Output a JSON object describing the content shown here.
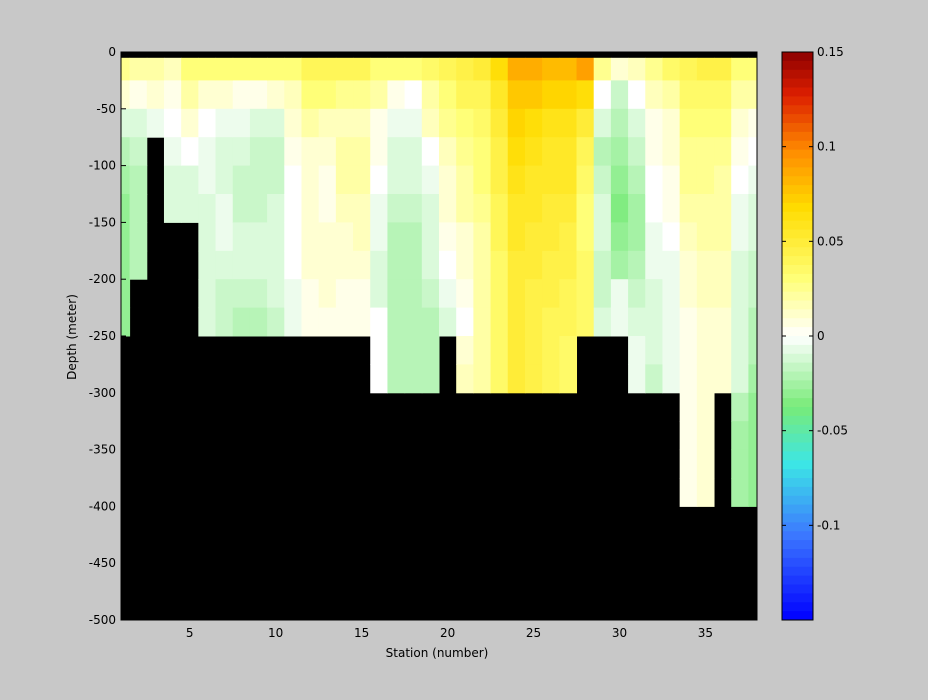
{
  "chart_data": {
    "type": "heatmap",
    "xlabel": "Station (number)",
    "ylabel": "Depth (meter)",
    "xlim": [
      1,
      38
    ],
    "ylim": [
      -500,
      0
    ],
    "x_ticks": [
      5,
      10,
      15,
      20,
      25,
      30,
      35
    ],
    "y_ticks": [
      0,
      -50,
      -100,
      -150,
      -200,
      -250,
      -300,
      -350,
      -400,
      -450,
      -500
    ],
    "colorbar": {
      "range": [
        -0.15,
        0.15
      ],
      "ticks": [
        0.15,
        0.1,
        0.05,
        0,
        -0.05,
        -0.1
      ],
      "tick_labels": [
        "0.15",
        "0.1",
        "0.05",
        "0",
        "-0.05",
        "-0.1"
      ],
      "colormap": "jet-like diverging with white at zero"
    },
    "stations": [
      1,
      2,
      3,
      4,
      5,
      6,
      7,
      8,
      9,
      10,
      11,
      12,
      13,
      14,
      15,
      16,
      17,
      18,
      19,
      20,
      21,
      22,
      23,
      24,
      25,
      26,
      27,
      28,
      29,
      30,
      31,
      32,
      33,
      34,
      35,
      36,
      37,
      38
    ],
    "bottom_depth": [
      -250,
      -200,
      -75,
      -150,
      -150,
      -250,
      -250,
      -250,
      -250,
      -250,
      -250,
      -250,
      -250,
      -250,
      -250,
      -300,
      -300,
      -300,
      -300,
      -250,
      -300,
      -300,
      -300,
      -300,
      -300,
      -300,
      -300,
      -250,
      -250,
      -250,
      -300,
      -300,
      -300,
      -400,
      -400,
      -300,
      -400,
      -400
    ],
    "depth_rows_top": [
      -5,
      -25,
      -50,
      -75,
      -100,
      -125,
      -150,
      -175,
      -200,
      -225,
      -250,
      -275,
      -300,
      -325,
      -350,
      -375
    ],
    "depth_rows_bottom": [
      -25,
      -50,
      -75,
      -100,
      -125,
      -150,
      -175,
      -200,
      -225,
      -250,
      -275,
      -300,
      -325,
      -350,
      -375,
      -400
    ],
    "station_profiles": [
      [
        0.025,
        0.01,
        -0.01,
        -0.02,
        -0.025,
        -0.03,
        -0.03,
        -0.03,
        -0.03,
        -0.03
      ],
      [
        0.02,
        0.005,
        -0.01,
        -0.015,
        -0.02,
        -0.02,
        -0.02,
        -0.02
      ],
      [
        0.02,
        0.01,
        -0.005
      ],
      [
        0.015,
        0.005,
        0.0,
        -0.005,
        -0.01,
        -0.01
      ],
      [
        0.03,
        0.02,
        0.01,
        0.0,
        -0.01,
        -0.01
      ],
      [
        0.03,
        0.01,
        0.0,
        -0.005,
        -0.005,
        -0.01,
        -0.01,
        -0.01,
        -0.01,
        -0.01
      ],
      [
        0.03,
        0.01,
        -0.005,
        -0.01,
        -0.01,
        -0.005,
        -0.005,
        -0.01,
        -0.015,
        -0.015
      ],
      [
        0.03,
        0.005,
        -0.005,
        -0.01,
        -0.015,
        -0.015,
        -0.01,
        -0.01,
        -0.015,
        -0.02
      ],
      [
        0.03,
        0.005,
        -0.01,
        -0.015,
        -0.015,
        -0.015,
        -0.01,
        -0.01,
        -0.015,
        -0.02
      ],
      [
        0.03,
        0.01,
        -0.01,
        -0.015,
        -0.015,
        -0.01,
        -0.01,
        -0.01,
        -0.01,
        -0.015
      ],
      [
        0.03,
        0.015,
        0.01,
        0.005,
        0.0,
        0.0,
        0.0,
        0.0,
        -0.005,
        -0.005
      ],
      [
        0.04,
        0.03,
        0.02,
        0.01,
        0.01,
        0.01,
        0.01,
        0.01,
        0.005,
        0.005
      ],
      [
        0.04,
        0.03,
        0.015,
        0.01,
        0.005,
        0.005,
        0.01,
        0.01,
        0.01,
        0.005
      ],
      [
        0.04,
        0.025,
        0.015,
        0.02,
        0.02,
        0.015,
        0.01,
        0.01,
        0.005,
        0.005
      ],
      [
        0.04,
        0.025,
        0.015,
        0.02,
        0.02,
        0.015,
        0.015,
        0.01,
        0.005,
        0.005
      ],
      [
        0.03,
        0.02,
        0.005,
        0.005,
        0.0,
        -0.005,
        -0.005,
        -0.01,
        -0.01,
        0.0,
        0.0,
        0.0
      ],
      [
        0.03,
        0.005,
        -0.005,
        -0.01,
        -0.01,
        -0.015,
        -0.02,
        -0.02,
        -0.02,
        -0.02,
        -0.02,
        -0.02
      ],
      [
        0.03,
        0.0,
        -0.005,
        -0.01,
        -0.01,
        -0.015,
        -0.02,
        -0.02,
        -0.02,
        -0.02,
        -0.02,
        -0.02
      ],
      [
        0.035,
        0.02,
        0.015,
        0.0,
        -0.005,
        -0.01,
        -0.01,
        -0.01,
        -0.015,
        -0.02,
        -0.02,
        -0.02
      ],
      [
        0.04,
        0.03,
        0.025,
        0.015,
        0.01,
        0.01,
        0.005,
        0.0,
        -0.005,
        -0.01
      ],
      [
        0.045,
        0.04,
        0.03,
        0.025,
        0.02,
        0.02,
        0.01,
        0.01,
        0.005,
        0.0,
        0.01,
        0.015
      ],
      [
        0.05,
        0.04,
        0.035,
        0.03,
        0.03,
        0.025,
        0.02,
        0.02,
        0.02,
        0.02,
        0.02,
        0.02
      ],
      [
        0.065,
        0.055,
        0.05,
        0.045,
        0.045,
        0.04,
        0.04,
        0.035,
        0.035,
        0.035,
        0.035,
        0.035
      ],
      [
        0.085,
        0.075,
        0.07,
        0.065,
        0.06,
        0.055,
        0.055,
        0.05,
        0.05,
        0.05,
        0.05,
        0.05
      ],
      [
        0.085,
        0.075,
        0.065,
        0.06,
        0.055,
        0.055,
        0.05,
        0.05,
        0.045,
        0.045,
        0.045,
        0.045
      ],
      [
        0.08,
        0.07,
        0.06,
        0.055,
        0.055,
        0.05,
        0.05,
        0.045,
        0.045,
        0.04,
        0.04,
        0.04
      ],
      [
        0.08,
        0.07,
        0.06,
        0.055,
        0.055,
        0.05,
        0.045,
        0.045,
        0.04,
        0.04,
        0.035,
        0.035
      ],
      [
        0.09,
        0.065,
        0.05,
        0.04,
        0.035,
        0.03,
        0.03,
        0.035,
        0.035,
        0.035
      ],
      [
        0.025,
        0.0,
        -0.01,
        -0.02,
        -0.015,
        -0.01,
        -0.01,
        -0.015,
        -0.015,
        -0.01
      ],
      [
        0.01,
        -0.015,
        -0.02,
        -0.025,
        -0.03,
        -0.035,
        -0.03,
        -0.025,
        -0.005,
        -0.005
      ],
      [
        0.015,
        0.0,
        -0.01,
        -0.015,
        -0.02,
        -0.025,
        -0.025,
        -0.02,
        -0.015,
        -0.01,
        -0.005,
        -0.005
      ],
      [
        0.025,
        0.015,
        0.005,
        0.005,
        0.0,
        0.0,
        -0.005,
        -0.005,
        -0.01,
        -0.01,
        -0.01,
        -0.015
      ],
      [
        0.035,
        0.02,
        0.01,
        0.01,
        0.005,
        0.005,
        0.0,
        -0.005,
        -0.005,
        -0.005,
        -0.005,
        -0.005
      ],
      [
        0.04,
        0.035,
        0.03,
        0.025,
        0.025,
        0.02,
        0.015,
        0.01,
        0.01,
        0.005,
        0.005,
        0.005,
        0.005,
        0.005,
        0.005,
        0.005
      ],
      [
        0.045,
        0.035,
        0.03,
        0.025,
        0.025,
        0.02,
        0.02,
        0.015,
        0.015,
        0.01,
        0.01,
        0.01,
        0.01,
        0.01,
        0.01,
        0.01
      ],
      [
        0.045,
        0.035,
        0.03,
        0.025,
        0.02,
        0.02,
        0.02,
        0.015,
        0.015,
        0.01,
        0.01,
        0.01
      ],
      [
        0.03,
        0.02,
        0.01,
        0.005,
        0.0,
        -0.005,
        -0.005,
        -0.01,
        -0.01,
        -0.01,
        -0.01,
        -0.01,
        -0.02,
        -0.025,
        -0.025,
        -0.025
      ],
      [
        0.03,
        0.02,
        0.005,
        0.0,
        -0.005,
        -0.01,
        -0.01,
        -0.015,
        -0.015,
        -0.02,
        -0.02,
        -0.025,
        -0.03,
        -0.03,
        -0.03,
        -0.03
      ]
    ]
  }
}
